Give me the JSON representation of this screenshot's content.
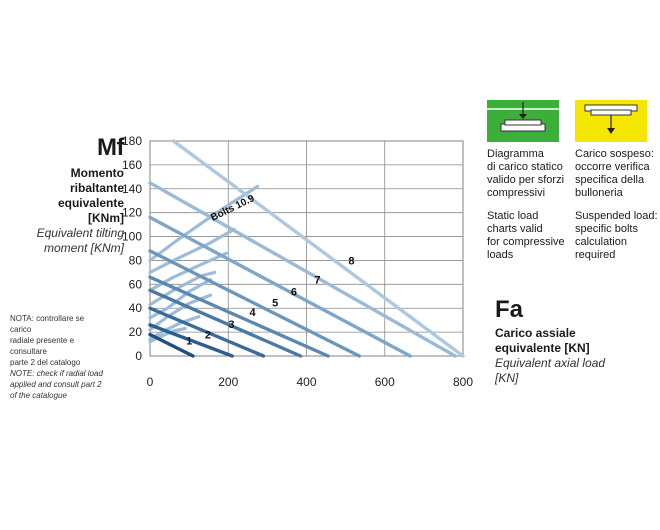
{
  "mf": {
    "symbol": "Mf",
    "label_it": [
      "Momento",
      "ribaltante",
      "equivalente",
      "[KNm]"
    ],
    "label_en": [
      "Equivalent tilting",
      "moment [KNm]"
    ]
  },
  "note": {
    "it": [
      "NOTA: controllare se carico",
      "radiale presente e consultare",
      "parte 2 del catalogo"
    ],
    "en": [
      "NOTE: check if radial load",
      "applied and consult part 2",
      "of the catalogue"
    ]
  },
  "fa": {
    "symbol": "Fa",
    "label_it": [
      "Carico assiale",
      "equivalente [KN]"
    ],
    "label_en": [
      "Equivalent axial load",
      "[KN]"
    ]
  },
  "panels": {
    "left": {
      "color": "#3cae3a",
      "text_it": [
        "Diagramma",
        "di carico statico",
        "valido per sforzi",
        "compressivi"
      ],
      "text_en": [
        "Static load",
        "charts valid",
        "for compressive",
        "loads"
      ]
    },
    "right": {
      "color": "#f5e600",
      "text_it": [
        "Carico sospeso:",
        "occorre verifica",
        "specifica della",
        "bulloneria"
      ],
      "text_en": [
        "Suspended load:",
        "specific bolts",
        "calculation",
        "required"
      ]
    }
  },
  "chart_data": {
    "type": "line",
    "xlim": [
      0,
      800
    ],
    "ylim": [
      0,
      180
    ],
    "x_ticks": [
      "0",
      "200",
      "400",
      "600",
      "800"
    ],
    "y_ticks": [
      "0",
      "20",
      "40",
      "60",
      "80",
      "100",
      "120",
      "140",
      "160",
      "180"
    ],
    "grid": true,
    "series": [
      {
        "name": "1",
        "color": "#1f4f7d",
        "points": [
          [
            0,
            18
          ],
          [
            110,
            0
          ]
        ]
      },
      {
        "name": "2",
        "color": "#2b5f8f",
        "points": [
          [
            0,
            26
          ],
          [
            210,
            0
          ]
        ]
      },
      {
        "name": "3",
        "color": "#3a6c9b",
        "points": [
          [
            0,
            40
          ],
          [
            290,
            0
          ]
        ]
      },
      {
        "name": "4",
        "color": "#4a79a6",
        "points": [
          [
            0,
            55
          ],
          [
            385,
            0
          ]
        ]
      },
      {
        "name": "5",
        "color": "#5b88b2",
        "points": [
          [
            0,
            66
          ],
          [
            455,
            0
          ]
        ]
      },
      {
        "name": "6",
        "color": "#6c97bd",
        "points": [
          [
            0,
            88
          ],
          [
            535,
            0
          ]
        ]
      },
      {
        "name": "7",
        "color": "#7fa6c8",
        "points": [
          [
            0,
            116
          ],
          [
            665,
            0
          ]
        ]
      },
      {
        "name": "8",
        "color": "#9bbad6",
        "points": [
          [
            0,
            145
          ],
          [
            780,
            0
          ]
        ]
      },
      {
        "name": "",
        "color": "#aec8e0",
        "points": [
          [
            60,
            180
          ],
          [
            800,
            0
          ]
        ]
      }
    ],
    "bolt_curves": {
      "label": "Bolts 10.9",
      "color": "#9dbcd8",
      "curves": [
        {
          "points": [
            [
              0,
              12
            ],
            [
              25,
              16
            ],
            [
              60,
              21
            ],
            [
              90,
              23
            ]
          ]
        },
        {
          "points": [
            [
              0,
              14
            ],
            [
              35,
              21
            ],
            [
              80,
              28
            ],
            [
              125,
              33
            ]
          ]
        },
        {
          "points": [
            [
              0,
              22
            ],
            [
              45,
              33
            ],
            [
              100,
              44
            ],
            [
              155,
              51
            ]
          ]
        },
        {
          "points": [
            [
              0,
              32
            ],
            [
              45,
              40
            ],
            [
              100,
              54
            ],
            [
              155,
              64
            ]
          ]
        },
        {
          "points": [
            [
              0,
              43
            ],
            [
              60,
              55
            ],
            [
              130,
              67
            ],
            [
              165,
              70
            ]
          ]
        },
        {
          "points": [
            [
              0,
              55
            ],
            [
              60,
              66
            ],
            [
              140,
              78
            ],
            [
              195,
              86
            ]
          ]
        },
        {
          "points": [
            [
              0,
              70
            ],
            [
              60,
              80
            ],
            [
              150,
              94
            ],
            [
              215,
              106
            ]
          ]
        },
        {
          "points": [
            [
              0,
              80
            ],
            [
              70,
              97
            ],
            [
              170,
              120
            ],
            [
              275,
              142
            ]
          ]
        }
      ]
    },
    "curve_labels": [
      {
        "text": "1",
        "x": 100,
        "y": 13
      },
      {
        "text": "2",
        "x": 148,
        "y": 18
      },
      {
        "text": "3",
        "x": 208,
        "y": 27
      },
      {
        "text": "4",
        "x": 262,
        "y": 37
      },
      {
        "text": "5",
        "x": 320,
        "y": 45
      },
      {
        "text": "6",
        "x": 368,
        "y": 54
      },
      {
        "text": "7",
        "x": 428,
        "y": 64
      },
      {
        "text": "8",
        "x": 515,
        "y": 80
      }
    ]
  }
}
